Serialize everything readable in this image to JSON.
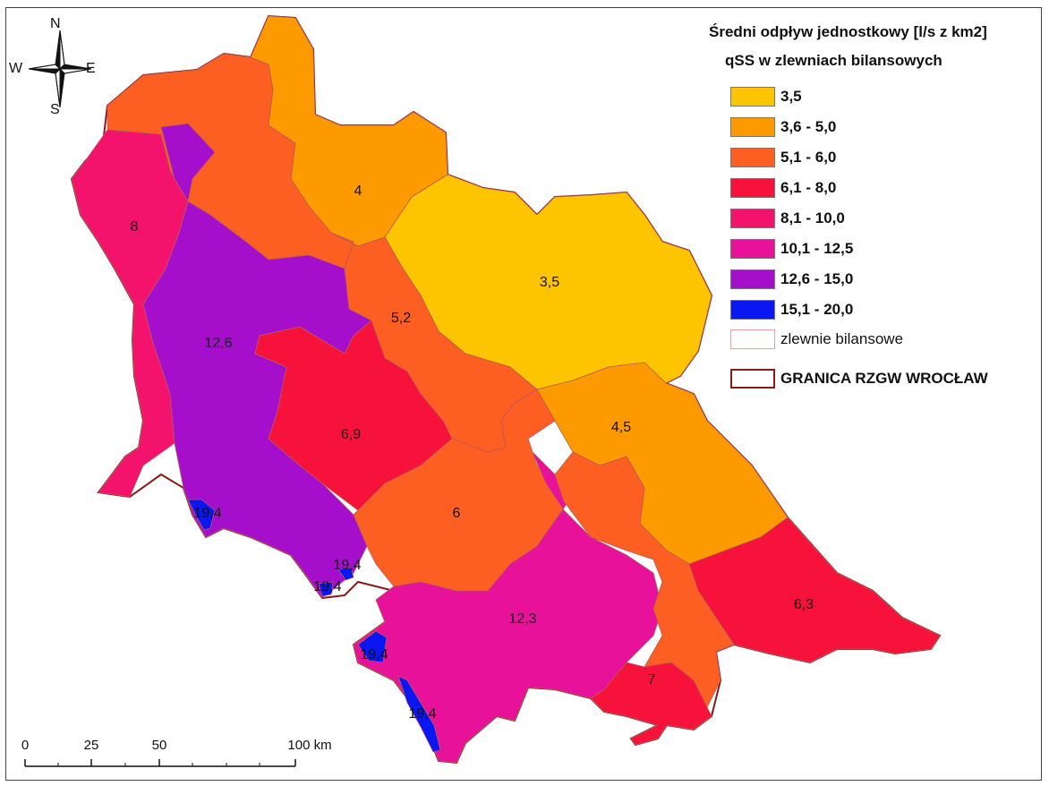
{
  "legend": {
    "title": "Średni odpływ jednostkowy [l/s z km2]",
    "subtitle": "qSS w zlewniach bilansowych",
    "classes": [
      {
        "label": "3,5",
        "color": "#fdc500"
      },
      {
        "label": "3,6 - 5,0",
        "color": "#fd9a00"
      },
      {
        "label": "5,1 - 6,0",
        "color": "#fd5e22"
      },
      {
        "label": "6,1 - 8,0",
        "color": "#f7123c"
      },
      {
        "label": "8,1 - 10,0",
        "color": "#f3126c"
      },
      {
        "label": "10,1 - 12,5",
        "color": "#e8119a"
      },
      {
        "label": "12,6 - 15,0",
        "color": "#a50fcc"
      },
      {
        "label": "15,1 - 20,0",
        "color": "#0a17f2"
      }
    ],
    "catchments_label": "zlewnie bilansowe",
    "boundary_label": "GRANICA RZGW WROCŁAW",
    "boundary_color": "#8b1a1a"
  },
  "compass": {
    "n": "N",
    "s": "S",
    "e": "E",
    "w": "W"
  },
  "scale": {
    "ticks": [
      "0",
      "25",
      "50",
      "100 km"
    ]
  },
  "regions": [
    {
      "id": "far-west",
      "value": "8",
      "color": "#f3126c"
    },
    {
      "id": "north-west",
      "value": "",
      "color": "#fd5e22"
    },
    {
      "id": "west-purple",
      "value": "12,6",
      "color": "#a50fcc"
    },
    {
      "id": "north-small",
      "value": "4",
      "color": "#fd9a00"
    },
    {
      "id": "north-east-yellow",
      "value": "3,5",
      "color": "#fdc500"
    },
    {
      "id": "center-corridor",
      "value": "5,2",
      "color": "#fd5e22"
    },
    {
      "id": "center-red",
      "value": "6,9",
      "color": "#f7123c"
    },
    {
      "id": "central-six",
      "value": "6",
      "color": "#fd5e22"
    },
    {
      "id": "east-orange",
      "value": "4,5",
      "color": "#fd9a00"
    },
    {
      "id": "south-magenta",
      "value": "12,3",
      "color": "#e8119a"
    },
    {
      "id": "east-red",
      "value": "6,3",
      "color": "#f7123c"
    },
    {
      "id": "south-red",
      "value": "7",
      "color": "#f7123c"
    },
    {
      "id": "south-east-orange",
      "value": "",
      "color": "#fd5e22"
    },
    {
      "id": "blue-1",
      "value": "19,4",
      "color": "#0a17f2"
    },
    {
      "id": "blue-2",
      "value": "19,4",
      "color": "#0a17f2"
    },
    {
      "id": "blue-3",
      "value": "19,4",
      "color": "#0a17f2"
    },
    {
      "id": "blue-4",
      "value": "19,4",
      "color": "#0a17f2"
    },
    {
      "id": "blue-5",
      "value": "19,4",
      "color": "#0a17f2"
    }
  ]
}
